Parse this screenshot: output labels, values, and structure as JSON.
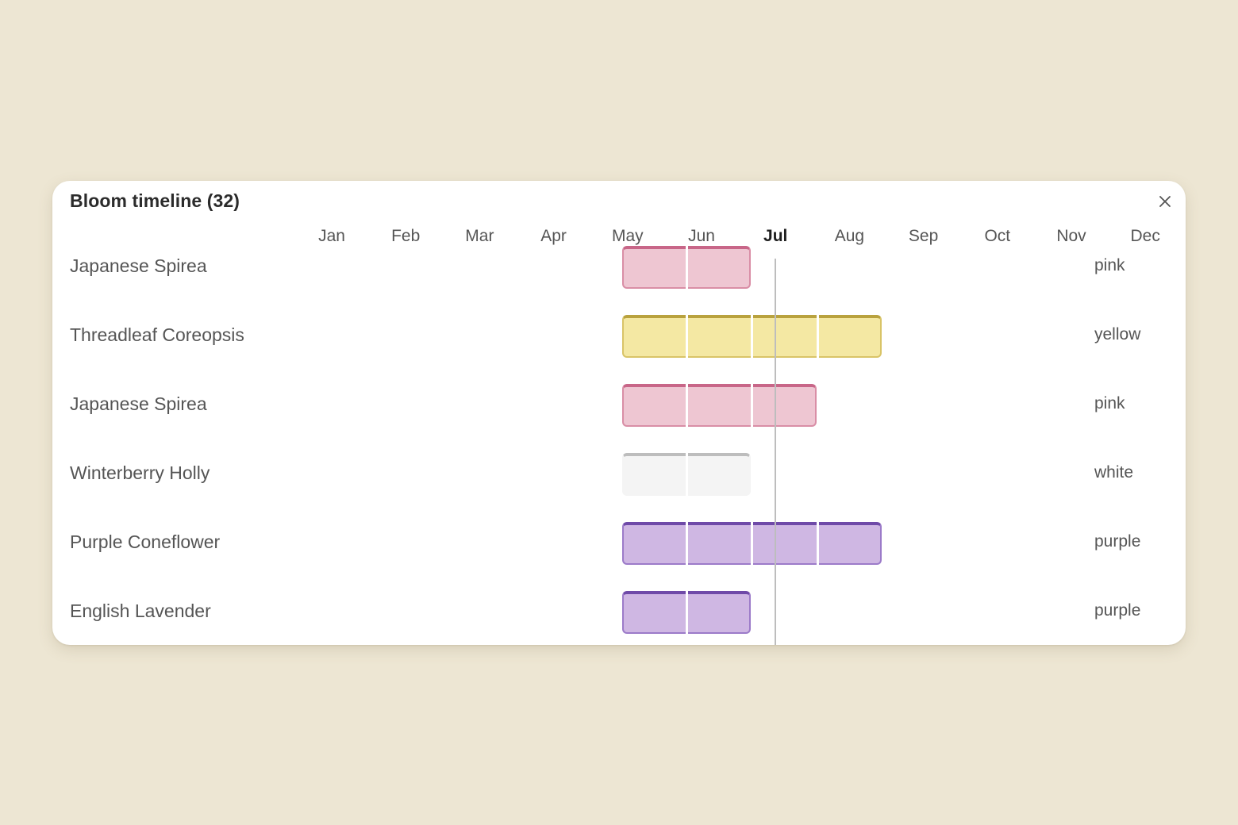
{
  "panel": {
    "title": "Bloom timeline (32)"
  },
  "months": [
    {
      "label": "Jan",
      "current": false
    },
    {
      "label": "Feb",
      "current": false
    },
    {
      "label": "Mar",
      "current": false
    },
    {
      "label": "Apr",
      "current": false
    },
    {
      "label": "May",
      "current": false
    },
    {
      "label": "Jun",
      "current": false
    },
    {
      "label": "Jul",
      "current": true
    },
    {
      "label": "Aug",
      "current": false
    },
    {
      "label": "Sep",
      "current": false
    },
    {
      "label": "Oct",
      "current": false
    },
    {
      "label": "Nov",
      "current": false
    },
    {
      "label": "Dec",
      "current": false
    }
  ],
  "plants": [
    {
      "name": "Japanese Spirea",
      "color": "pink",
      "months": [
        "May",
        "Jun"
      ]
    },
    {
      "name": "Threadleaf Coreopsis",
      "color": "yellow",
      "months": [
        "May",
        "Jun",
        "Jul",
        "Aug"
      ]
    },
    {
      "name": "Japanese Spirea",
      "color": "pink",
      "months": [
        "May",
        "Jun",
        "Jul"
      ]
    },
    {
      "name": "Winterberry Holly",
      "color": "white",
      "months": [
        "May",
        "Jun"
      ]
    },
    {
      "name": "Purple Coneflower",
      "color": "purple",
      "months": [
        "May",
        "Jun",
        "Jul",
        "Aug"
      ]
    },
    {
      "name": "English Lavender",
      "color": "purple",
      "months": [
        "May",
        "Jun"
      ]
    }
  ],
  "palette": {
    "pink": {
      "fill": "#eec6d2",
      "border": "#d98ea6",
      "top": "#c86688"
    },
    "yellow": {
      "fill": "#f4e8a3",
      "border": "#d9c467",
      "top": "#b9a23e"
    },
    "white": {
      "fill": "#f4f4f4",
      "border": "#f4f4f4",
      "top": "#bdbdbd"
    },
    "purple": {
      "fill": "#cfb7e3",
      "border": "#9c7bc9",
      "top": "#6f4aa8"
    }
  },
  "today_month": "Jul"
}
